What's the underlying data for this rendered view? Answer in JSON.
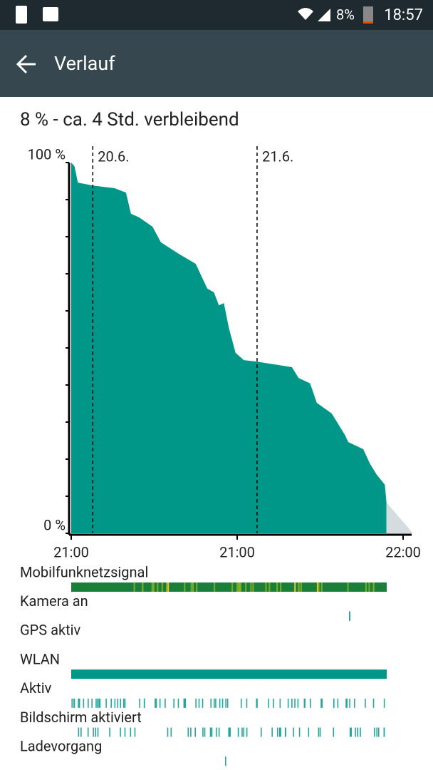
{
  "status_bar": {
    "battery": "8%",
    "time": "18:57"
  },
  "toolbar": {
    "title": "Verlauf"
  },
  "tracks": [
    "Mobilfunknetzsignal",
    "Kamera an",
    "GPS aktiv",
    "WLAN",
    "Aktiv",
    "Bildschirm aktiviert",
    "Ladevorgang"
  ],
  "chart_data": {
    "type": "area",
    "title": "8 % - ca. 4 Std. verbleibend",
    "xlim": [
      0,
      2
    ],
    "xticks": [
      {
        "value": 0,
        "label": "21:00"
      },
      {
        "value": 1,
        "label": "21:00"
      },
      {
        "value": 2,
        "label": "22:00"
      }
    ],
    "ylim": [
      0,
      100
    ],
    "yticks": [
      {
        "value": 0,
        "label": "0 %"
      },
      {
        "value": 100,
        "label": "100 %"
      }
    ],
    "minor_yticks": [
      10,
      20,
      30,
      40,
      50,
      60,
      70,
      80,
      90
    ],
    "date_markers": [
      {
        "x": 0.13,
        "label": "20.6."
      },
      {
        "x": 1.12,
        "label": "21.6."
      }
    ],
    "series": [
      {
        "color": "#009688",
        "x": [
          0,
          0.02,
          0.04,
          0.13,
          0.26,
          0.33,
          0.36,
          0.41,
          0.49,
          0.54,
          0.64,
          0.75,
          0.82,
          0.86,
          0.89,
          0.92,
          0.95,
          0.99,
          1.04,
          1.12,
          1.33,
          1.37,
          1.44,
          1.48,
          1.57,
          1.65,
          1.67,
          1.76,
          1.8,
          1.84,
          1.89,
          1.9
        ],
        "values": [
          100,
          99,
          94.6,
          93.8,
          93.1,
          91.9,
          86.2,
          85.2,
          82.7,
          78.5,
          75.6,
          72.7,
          66,
          65,
          61.5,
          62.1,
          55.4,
          48.7,
          46.7,
          46.3,
          44.8,
          41.9,
          40.4,
          35.2,
          32.3,
          26.5,
          24.6,
          22.7,
          18.8,
          15.9,
          13.1,
          8.3
        ]
      },
      {
        "color": "#d5dcdf",
        "x": [
          1.9,
          2.06
        ],
        "values": [
          8.3,
          0
        ]
      }
    ]
  }
}
